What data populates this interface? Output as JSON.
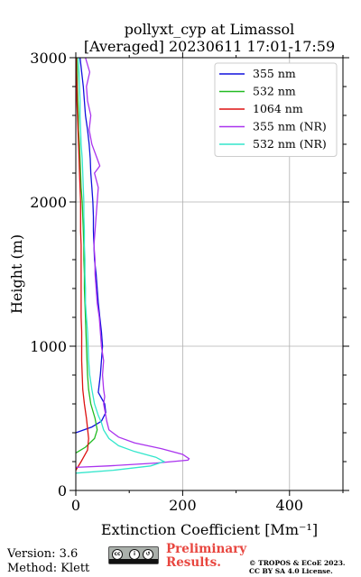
{
  "title": "pollyxt_cyp at Limassol",
  "subtitle": "[Averaged] 20230611 17:01-17:59",
  "footer": {
    "version": "Version: 3.6",
    "method": "Method: Klett",
    "preliminary_line1": "Preliminary",
    "preliminary_line2": "Results.",
    "license_line1": "© TROPOS & ECoE 2023.",
    "license_line2": "CC BY SA 4.0 License.",
    "cc_logo_icons": [
      "cc-icon",
      "by-icon",
      "sa-icon"
    ]
  },
  "chart_data": {
    "type": "line",
    "title": "pollyxt_cyp at Limassol\n[Averaged] 20230611 17:01-17:59",
    "xlabel": "Extinction Coefficient [Mm⁻¹]",
    "ylabel": "Height (m)",
    "xlim": [
      0,
      500
    ],
    "ylim": [
      0,
      3000
    ],
    "xticks": [
      "0",
      "200",
      "400"
    ],
    "yticks": [
      "0",
      "1000",
      "2000",
      "3000"
    ],
    "xtick_values": [
      0,
      200,
      400
    ],
    "ytick_values": [
      0,
      1000,
      2000,
      3000
    ],
    "grid": true,
    "legend_position": "top-right",
    "series": [
      {
        "name": "355 nm",
        "color": "#1010dd",
        "points": [
          [
            0,
            400
          ],
          [
            30,
            440
          ],
          [
            48,
            480
          ],
          [
            56,
            540
          ],
          [
            54,
            600
          ],
          [
            42,
            680
          ],
          [
            46,
            800
          ],
          [
            48,
            900
          ],
          [
            50,
            1000
          ],
          [
            48,
            1100
          ],
          [
            45,
            1200
          ],
          [
            42,
            1300
          ],
          [
            40,
            1400
          ],
          [
            38,
            1500
          ],
          [
            35,
            1600
          ],
          [
            34,
            1700
          ],
          [
            33,
            1800
          ],
          [
            33,
            1900
          ],
          [
            32,
            2000
          ],
          [
            30,
            2100
          ],
          [
            28,
            2200
          ],
          [
            27,
            2300
          ],
          [
            25,
            2400
          ],
          [
            22,
            2500
          ],
          [
            18,
            2600
          ],
          [
            16,
            2700
          ],
          [
            14,
            2800
          ],
          [
            11,
            2900
          ],
          [
            8,
            3000
          ]
        ]
      },
      {
        "name": "532 nm",
        "color": "#22bb22",
        "points": [
          [
            0,
            260
          ],
          [
            18,
            300
          ],
          [
            35,
            360
          ],
          [
            40,
            420
          ],
          [
            36,
            500
          ],
          [
            28,
            600
          ],
          [
            24,
            700
          ],
          [
            22,
            800
          ],
          [
            21,
            900
          ],
          [
            20,
            1000
          ],
          [
            19,
            1100
          ],
          [
            18,
            1200
          ],
          [
            17,
            1300
          ],
          [
            16,
            1400
          ],
          [
            16,
            1500
          ],
          [
            15,
            1600
          ],
          [
            15,
            1700
          ],
          [
            14,
            1800
          ],
          [
            13,
            1900
          ],
          [
            12,
            2000
          ],
          [
            10,
            2100
          ],
          [
            9,
            2200
          ],
          [
            8,
            2300
          ],
          [
            7,
            2400
          ],
          [
            5,
            2500
          ],
          [
            5,
            2600
          ],
          [
            4,
            2700
          ],
          [
            3,
            2800
          ],
          [
            3,
            2900
          ],
          [
            2,
            3000
          ]
        ]
      },
      {
        "name": "1064 nm",
        "color": "#dd1111",
        "points": [
          [
            0,
            140
          ],
          [
            10,
            200
          ],
          [
            22,
            280
          ],
          [
            24,
            360
          ],
          [
            20,
            500
          ],
          [
            16,
            600
          ],
          [
            13,
            700
          ],
          [
            12,
            800
          ],
          [
            11,
            900
          ],
          [
            11,
            1000
          ],
          [
            11,
            1100
          ],
          [
            10,
            1200
          ],
          [
            10,
            1300
          ],
          [
            10,
            1400
          ],
          [
            10,
            1500
          ],
          [
            10,
            1600
          ],
          [
            10,
            1700
          ],
          [
            9,
            1800
          ],
          [
            9,
            1900
          ],
          [
            9,
            2000
          ],
          [
            8,
            2100
          ],
          [
            7,
            2200
          ],
          [
            6,
            2300
          ],
          [
            5,
            2400
          ],
          [
            4,
            2500
          ],
          [
            3,
            2600
          ],
          [
            2,
            2700
          ],
          [
            2,
            2800
          ],
          [
            1,
            2900
          ],
          [
            1,
            3000
          ]
        ]
      },
      {
        "name": "355 nm (NR)",
        "color": "#aa33ee",
        "points": [
          [
            0,
            160
          ],
          [
            60,
            170
          ],
          [
            150,
            190
          ],
          [
            210,
            210
          ],
          [
            212,
            220
          ],
          [
            200,
            250
          ],
          [
            160,
            290
          ],
          [
            110,
            330
          ],
          [
            80,
            370
          ],
          [
            62,
            420
          ],
          [
            58,
            480
          ],
          [
            55,
            540
          ],
          [
            52,
            600
          ],
          [
            54,
            650
          ],
          [
            52,
            700
          ],
          [
            50,
            800
          ],
          [
            52,
            900
          ],
          [
            48,
            1000
          ],
          [
            46,
            1100
          ],
          [
            44,
            1200
          ],
          [
            40,
            1300
          ],
          [
            38,
            1400
          ],
          [
            36,
            1500
          ],
          [
            36,
            1600
          ],
          [
            34,
            1700
          ],
          [
            36,
            1800
          ],
          [
            38,
            1900
          ],
          [
            40,
            2000
          ],
          [
            42,
            2100
          ],
          [
            35,
            2200
          ],
          [
            45,
            2250
          ],
          [
            40,
            2300
          ],
          [
            30,
            2400
          ],
          [
            25,
            2500
          ],
          [
            28,
            2600
          ],
          [
            22,
            2700
          ],
          [
            20,
            2800
          ],
          [
            26,
            2900
          ],
          [
            18,
            3000
          ]
        ]
      },
      {
        "name": "532 nm (NR)",
        "color": "#33e6cc",
        "points": [
          [
            0,
            120
          ],
          [
            70,
            140
          ],
          [
            140,
            170
          ],
          [
            165,
            200
          ],
          [
            150,
            230
          ],
          [
            110,
            270
          ],
          [
            80,
            310
          ],
          [
            62,
            360
          ],
          [
            52,
            420
          ],
          [
            48,
            470
          ],
          [
            42,
            520
          ],
          [
            35,
            600
          ],
          [
            30,
            700
          ],
          [
            26,
            800
          ],
          [
            24,
            900
          ],
          [
            23,
            1000
          ],
          [
            22,
            1100
          ],
          [
            20,
            1200
          ],
          [
            18,
            1300
          ],
          [
            18,
            1400
          ],
          [
            17,
            1500
          ],
          [
            17,
            1600
          ],
          [
            16,
            1700
          ],
          [
            16,
            1800
          ],
          [
            15,
            1900
          ],
          [
            15,
            2000
          ],
          [
            14,
            2100
          ],
          [
            13,
            2200
          ],
          [
            12,
            2300
          ],
          [
            10,
            2400
          ],
          [
            9,
            2500
          ],
          [
            8,
            2600
          ],
          [
            8,
            2700
          ],
          [
            7,
            2800
          ],
          [
            6,
            2900
          ],
          [
            5,
            3000
          ]
        ]
      }
    ]
  }
}
